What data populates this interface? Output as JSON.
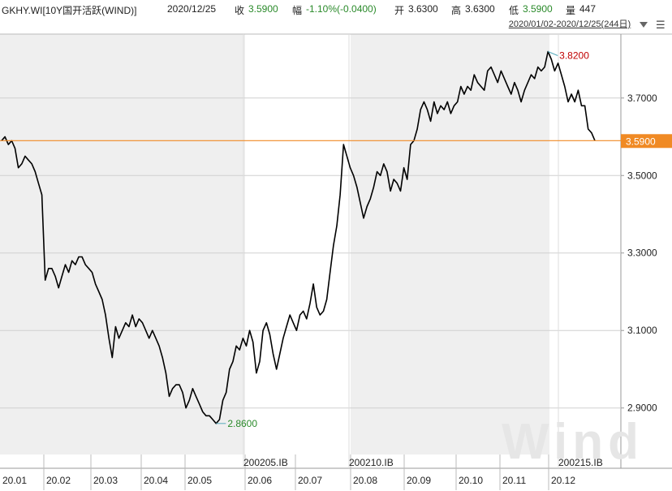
{
  "header": {
    "code": "GKHY.WI[10Y国开活跃(WIND)]",
    "date": "2020/12/25",
    "close_label": "收",
    "close_value": "3.5900",
    "change_label": "幅",
    "change_value": "-1.10%(-0.0400)",
    "open_label": "开",
    "open_value": "3.6300",
    "high_label": "高",
    "high_value": "3.6300",
    "low_label": "低",
    "low_value": "3.5900",
    "volume_label": "量",
    "volume_value": "447"
  },
  "range_selector": {
    "label": "2020/01/02-2020/12/25(244日)"
  },
  "colors": {
    "line": "#000000",
    "current_price": "#f08a24",
    "up_text": "#2a8a2a",
    "down_text": "#c00000",
    "shade": "#efefef",
    "grid": "#d0d0d0"
  },
  "chart_data": {
    "type": "line",
    "title": "",
    "xlabel": "",
    "ylabel": "",
    "ylim": [
      2.78,
      3.865
    ],
    "y_ticks": [
      "3.7000",
      "3.5000",
      "3.3000",
      "3.1000",
      "2.9000"
    ],
    "x_ticks": [
      "20.01",
      "20.02",
      "20.03",
      "20.04",
      "20.05",
      "20.06",
      "20.07",
      "20.08",
      "20.09",
      "20.10",
      "20.11",
      "20.12"
    ],
    "contract_labels": [
      "200205.IB",
      "200210.IB",
      "200215.IB"
    ],
    "current_value": 3.59,
    "current_value_label": "3.5900",
    "max_annotation": {
      "label": "3.8200",
      "value": 3.82
    },
    "min_annotation": {
      "label": "2.8600",
      "value": 2.86
    },
    "series": [
      {
        "values": [
          3.59,
          3.6,
          3.58,
          3.59,
          3.57,
          3.52,
          3.53,
          3.55,
          3.54,
          3.53,
          3.51,
          3.48,
          3.45,
          3.23,
          3.26,
          3.26,
          3.24,
          3.21,
          3.24,
          3.27,
          3.25,
          3.28,
          3.27,
          3.29,
          3.29,
          3.27,
          3.26,
          3.25,
          3.22,
          3.2,
          3.18,
          3.14,
          3.08,
          3.03,
          3.11,
          3.08,
          3.1,
          3.12,
          3.11,
          3.14,
          3.11,
          3.13,
          3.12,
          3.1,
          3.08,
          3.1,
          3.08,
          3.06,
          3.03,
          2.99,
          2.93,
          2.95,
          2.96,
          2.96,
          2.94,
          2.9,
          2.92,
          2.95,
          2.93,
          2.91,
          2.89,
          2.88,
          2.88,
          2.87,
          2.86,
          2.87,
          2.92,
          2.94,
          3.0,
          3.02,
          3.06,
          3.05,
          3.08,
          3.06,
          3.1,
          3.07,
          2.99,
          3.02,
          3.1,
          3.12,
          3.09,
          3.04,
          3.0,
          3.04,
          3.08,
          3.11,
          3.14,
          3.12,
          3.1,
          3.14,
          3.15,
          3.13,
          3.17,
          3.22,
          3.16,
          3.14,
          3.15,
          3.18,
          3.25,
          3.32,
          3.37,
          3.45,
          3.58,
          3.55,
          3.52,
          3.5,
          3.47,
          3.43,
          3.39,
          3.42,
          3.44,
          3.47,
          3.51,
          3.5,
          3.53,
          3.51,
          3.46,
          3.49,
          3.48,
          3.46,
          3.52,
          3.49,
          3.58,
          3.59,
          3.62,
          3.67,
          3.69,
          3.67,
          3.64,
          3.69,
          3.66,
          3.68,
          3.67,
          3.69,
          3.66,
          3.68,
          3.69,
          3.73,
          3.71,
          3.73,
          3.72,
          3.76,
          3.74,
          3.73,
          3.72,
          3.77,
          3.78,
          3.76,
          3.74,
          3.77,
          3.75,
          3.73,
          3.71,
          3.74,
          3.72,
          3.69,
          3.72,
          3.74,
          3.76,
          3.75,
          3.78,
          3.77,
          3.78,
          3.82,
          3.8,
          3.77,
          3.79,
          3.76,
          3.73,
          3.69,
          3.71,
          3.69,
          3.72,
          3.68,
          3.68,
          3.62,
          3.61,
          3.59
        ]
      }
    ],
    "grid": true,
    "legend": "none"
  }
}
